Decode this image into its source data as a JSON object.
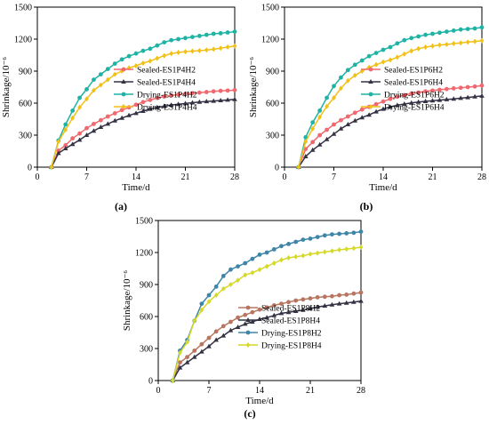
{
  "chart_data": [
    {
      "type": "line",
      "panel_label": "(a)",
      "xlabel": "Time/d",
      "ylabel": "Shrinkage/10⁻⁶",
      "xlim": [
        0,
        28
      ],
      "ylim": [
        0,
        1500
      ],
      "xticks": [
        0,
        7,
        14,
        21,
        28
      ],
      "yticks": [
        0,
        300,
        600,
        900,
        1200,
        1500
      ],
      "legend_position": "right",
      "x": [
        2,
        3,
        4,
        5,
        6,
        7,
        8,
        9,
        10,
        11,
        12,
        13,
        14,
        15,
        16,
        17,
        18,
        19,
        20,
        21,
        22,
        23,
        24,
        25,
        26,
        27,
        28
      ],
      "series": [
        {
          "name": "Sealed-ES1P4H2",
          "color": "#f0696e",
          "marker": "circle",
          "values": [
            0,
            155,
            205,
            270,
            315,
            365,
            405,
            440,
            475,
            505,
            535,
            560,
            585,
            610,
            630,
            648,
            662,
            672,
            680,
            688,
            693,
            698,
            704,
            710,
            715,
            718,
            722
          ]
        },
        {
          "name": "Sealed-ES1P4H4",
          "color": "#333344",
          "marker": "triangle",
          "values": [
            0,
            130,
            175,
            215,
            255,
            300,
            340,
            375,
            405,
            435,
            460,
            485,
            505,
            525,
            545,
            560,
            572,
            582,
            590,
            597,
            604,
            610,
            616,
            620,
            625,
            630,
            635
          ]
        },
        {
          "name": "Drying-ES1P4H2",
          "color": "#1fb3a5",
          "marker": "circle",
          "values": [
            0,
            250,
            400,
            530,
            650,
            730,
            820,
            870,
            920,
            970,
            1010,
            1040,
            1065,
            1090,
            1110,
            1140,
            1170,
            1190,
            1200,
            1210,
            1220,
            1230,
            1240,
            1250,
            1255,
            1262,
            1270
          ]
        },
        {
          "name": "Drying-ES1P4H4",
          "color": "#f2c117",
          "marker": "diamond",
          "values": [
            0,
            240,
            350,
            460,
            560,
            640,
            720,
            770,
            820,
            870,
            900,
            930,
            950,
            975,
            995,
            1020,
            1045,
            1065,
            1075,
            1082,
            1088,
            1092,
            1098,
            1105,
            1115,
            1125,
            1135
          ]
        }
      ]
    },
    {
      "type": "line",
      "panel_label": "(b)",
      "xlabel": "Time/d",
      "ylabel": "Shrinkage/10⁻⁶",
      "xlim": [
        0,
        28
      ],
      "ylim": [
        0,
        1500
      ],
      "xticks": [
        0,
        7,
        14,
        21,
        28
      ],
      "yticks": [
        0,
        300,
        600,
        900,
        1200,
        1500
      ],
      "legend_position": "right",
      "x": [
        2,
        3,
        4,
        5,
        6,
        7,
        8,
        9,
        10,
        11,
        12,
        13,
        14,
        15,
        16,
        17,
        18,
        19,
        20,
        21,
        22,
        23,
        24,
        25,
        26,
        27,
        28
      ],
      "series": [
        {
          "name": "Sealed-ES1P6H2",
          "color": "#f0696e",
          "marker": "circle",
          "values": [
            0,
            170,
            235,
            300,
            350,
            400,
            440,
            475,
            510,
            540,
            565,
            590,
            615,
            640,
            660,
            675,
            690,
            700,
            710,
            718,
            725,
            732,
            738,
            744,
            750,
            756,
            765
          ]
        },
        {
          "name": "Sealed-ES1P6H4",
          "color": "#333344",
          "marker": "triangle",
          "values": [
            0,
            100,
            160,
            210,
            260,
            310,
            360,
            400,
            435,
            465,
            490,
            520,
            545,
            565,
            580,
            592,
            602,
            610,
            617,
            623,
            628,
            634,
            640,
            647,
            653,
            660,
            668
          ]
        },
        {
          "name": "Drying-ES1P6H2",
          "color": "#1fb3a5",
          "marker": "circle",
          "values": [
            0,
            280,
            420,
            530,
            650,
            760,
            840,
            910,
            960,
            1000,
            1040,
            1070,
            1100,
            1125,
            1160,
            1190,
            1210,
            1225,
            1240,
            1250,
            1260,
            1270,
            1280,
            1290,
            1295,
            1300,
            1310
          ]
        },
        {
          "name": "Drying-ES1P6H4",
          "color": "#f2c117",
          "marker": "diamond",
          "values": [
            0,
            240,
            360,
            470,
            570,
            650,
            740,
            810,
            860,
            900,
            935,
            960,
            985,
            1005,
            1030,
            1060,
            1090,
            1110,
            1125,
            1135,
            1145,
            1150,
            1158,
            1165,
            1172,
            1178,
            1185
          ]
        }
      ]
    },
    {
      "type": "line",
      "panel_label": "(c)",
      "xlabel": "Time/d",
      "ylabel": "Shrinkage/10⁻⁶",
      "xlim": [
        0,
        28
      ],
      "ylim": [
        0,
        1500
      ],
      "xticks": [
        0,
        7,
        14,
        21,
        28
      ],
      "yticks": [
        0,
        300,
        600,
        900,
        1200,
        1500
      ],
      "legend_position": "lower-right",
      "x": [
        2,
        3,
        4,
        5,
        6,
        7,
        8,
        9,
        10,
        11,
        12,
        13,
        14,
        15,
        16,
        17,
        18,
        19,
        20,
        21,
        22,
        23,
        24,
        25,
        26,
        27,
        28
      ],
      "series": [
        {
          "name": "Sealed-ES1P8H2",
          "color": "#b87560",
          "marker": "circle",
          "values": [
            0,
            170,
            220,
            280,
            340,
            400,
            460,
            510,
            550,
            590,
            615,
            640,
            665,
            685,
            705,
            720,
            735,
            750,
            760,
            770,
            780,
            785,
            790,
            800,
            805,
            815,
            825
          ]
        },
        {
          "name": "Sealed-ES1P8H4",
          "color": "#333344",
          "marker": "triangle",
          "values": [
            0,
            120,
            170,
            220,
            270,
            320,
            380,
            420,
            470,
            500,
            530,
            550,
            575,
            590,
            610,
            630,
            640,
            650,
            660,
            675,
            690,
            700,
            710,
            720,
            727,
            735,
            745
          ]
        },
        {
          "name": "Drying-ES1P8H2",
          "color": "#3e86a8",
          "marker": "circle",
          "values": [
            0,
            280,
            380,
            560,
            720,
            800,
            880,
            980,
            1040,
            1070,
            1100,
            1140,
            1180,
            1200,
            1230,
            1260,
            1280,
            1300,
            1320,
            1330,
            1345,
            1360,
            1370,
            1375,
            1380,
            1385,
            1395
          ]
        },
        {
          "name": "Drying-ES1P8H4",
          "color": "#d6d92a",
          "marker": "diamond",
          "values": [
            0,
            260,
            360,
            560,
            660,
            740,
            800,
            860,
            900,
            940,
            990,
            1010,
            1040,
            1070,
            1100,
            1130,
            1150,
            1160,
            1170,
            1185,
            1195,
            1205,
            1215,
            1225,
            1232,
            1240,
            1250
          ]
        }
      ]
    }
  ]
}
